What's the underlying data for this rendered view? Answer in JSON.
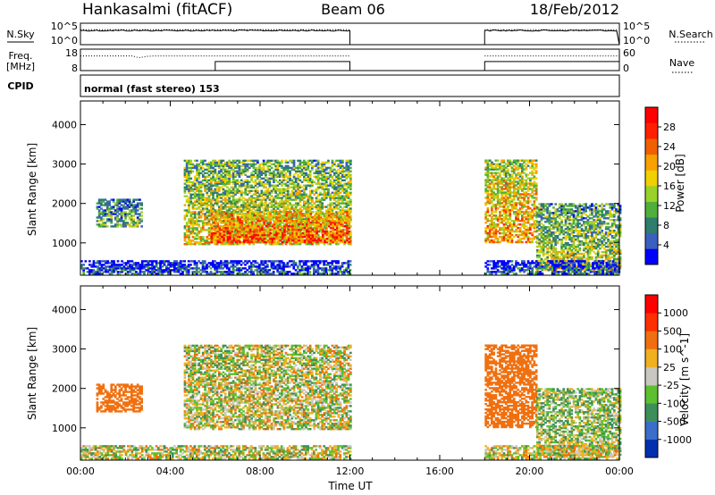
{
  "header": {
    "station": "Hankasalmi (fitACF)",
    "beam": "Beam 06",
    "date": "18/Feb/2012",
    "cpid_label": "CPID",
    "cpid_text": "normal (fast stereo) 153"
  },
  "chart_data": [
    {
      "type": "line",
      "panel": "noise",
      "left_label": "N.Sky",
      "right_label": "N.Search",
      "left_ticks": [
        "10^5",
        "10^0"
      ],
      "right_ticks": [
        "10^5",
        "10^0"
      ],
      "xlim": [
        0,
        24
      ],
      "series": [
        {
          "name": "N.Sky",
          "style": "solid",
          "segments": [
            [
              0,
              12
            ],
            [
              18,
              24
            ]
          ],
          "approx_log_level": 3.3
        },
        {
          "name": "N.Search",
          "style": "dotted",
          "segments": [
            [
              0,
              12
            ],
            [
              18,
              24
            ]
          ],
          "approx_log_level": 3.5
        }
      ]
    },
    {
      "type": "line",
      "panel": "frequency",
      "left_label_line1": "Freq.",
      "left_label_line2": "[MHz]",
      "right_label": "Nave",
      "left_ticks": [
        "18",
        "8"
      ],
      "right_ticks": [
        "60",
        "0"
      ],
      "ylim_left": [
        8,
        18
      ],
      "ylim_right": [
        0,
        60
      ],
      "series": [
        {
          "name": "Freq.",
          "style": "solid",
          "points": [
            [
              0,
              8.0
            ],
            [
              6,
              8.0
            ],
            [
              6,
              12.2
            ],
            [
              12,
              12.2
            ],
            [
              12,
              8.0
            ],
            [
              18,
              8.0
            ],
            [
              18,
              12.2
            ],
            [
              24,
              12.2
            ]
          ]
        },
        {
          "name": "Nave",
          "style": "dotted",
          "points": [
            [
              0,
              41
            ],
            [
              2.3,
              41
            ],
            [
              2.6,
              36
            ],
            [
              3.0,
              40
            ],
            [
              3.3,
              41
            ],
            [
              12,
              41
            ],
            [
              18,
              41
            ],
            [
              24,
              41
            ]
          ]
        }
      ]
    },
    {
      "type": "heatmap",
      "panel": "power",
      "ylabel": "Slant Range [km]",
      "xlabel": "",
      "y_ticks": [
        1000,
        2000,
        3000,
        4000
      ],
      "ylim": [
        180,
        4600
      ],
      "xlim": [
        0,
        24
      ],
      "colorbar_label": "Power [dB]",
      "colorbar_ticks": [
        "4",
        "8",
        "12",
        "16",
        "20",
        "24",
        "28"
      ],
      "colorbar_colors": [
        "#0000ff",
        "#3a5fbe",
        "#2e7d6e",
        "#4faf3a",
        "#9ad12a",
        "#f0d000",
        "#f7a000",
        "#f06000",
        "#ff2000",
        "#ff0000"
      ],
      "echo_regions": [
        {
          "t0": 0.7,
          "t1": 2.7,
          "r0": 1400,
          "r1": 2100,
          "power": 14
        },
        {
          "t0": 4.6,
          "t1": 12.0,
          "r0": 950,
          "r1": 3100,
          "power": 20
        },
        {
          "t0": 5.8,
          "t1": 12.0,
          "r0": 1000,
          "r1": 1800,
          "power": 28
        },
        {
          "t0": 18.0,
          "t1": 20.3,
          "r0": 1000,
          "r1": 3100,
          "power": 24
        },
        {
          "t0": 20.3,
          "t1": 24.0,
          "r0": 300,
          "r1": 2000,
          "power": 18
        },
        {
          "t0": 0.0,
          "t1": 12.0,
          "r0": 200,
          "r1": 550,
          "power": 8
        },
        {
          "t0": 18.0,
          "t1": 24.0,
          "r0": 200,
          "r1": 550,
          "power": 8
        }
      ]
    },
    {
      "type": "heatmap",
      "panel": "velocity",
      "ylabel": "Slant Range [km]",
      "xlabel": "Time UT",
      "x_ticks": [
        "00:00",
        "04:00",
        "08:00",
        "12:00",
        "16:00",
        "20:00",
        "00:00"
      ],
      "y_ticks": [
        1000,
        2000,
        3000,
        4000
      ],
      "ylim": [
        180,
        4600
      ],
      "xlim": [
        0,
        24
      ],
      "colorbar_label": "Velocity [m s^-1]",
      "colorbar_ticks": [
        "1000",
        "500",
        "100",
        "25",
        "-25",
        "-100",
        "-500",
        "-1000"
      ],
      "colorbar_colors": [
        "#0030b0",
        "#3a6ec8",
        "#3d8f5a",
        "#5cc030",
        "#c8c8c0",
        "#f0b020",
        "#f07010",
        "#ff3000",
        "#ff0000"
      ],
      "echo_regions": [
        {
          "t0": 0.7,
          "t1": 2.7,
          "r0": 1400,
          "r1": 2100,
          "velocity": -300
        },
        {
          "t0": 4.6,
          "t1": 12.0,
          "r0": 950,
          "r1": 3100,
          "velocity": 0
        },
        {
          "t0": 18.0,
          "t1": 20.3,
          "r0": 1000,
          "r1": 3100,
          "velocity": -300
        },
        {
          "t0": 20.3,
          "t1": 24.0,
          "r0": 300,
          "r1": 2000,
          "velocity": 50
        },
        {
          "t0": 0.0,
          "t1": 12.0,
          "r0": 200,
          "r1": 550,
          "velocity": 0
        },
        {
          "t0": 18.0,
          "t1": 24.0,
          "r0": 200,
          "r1": 550,
          "velocity": 0
        }
      ]
    }
  ]
}
